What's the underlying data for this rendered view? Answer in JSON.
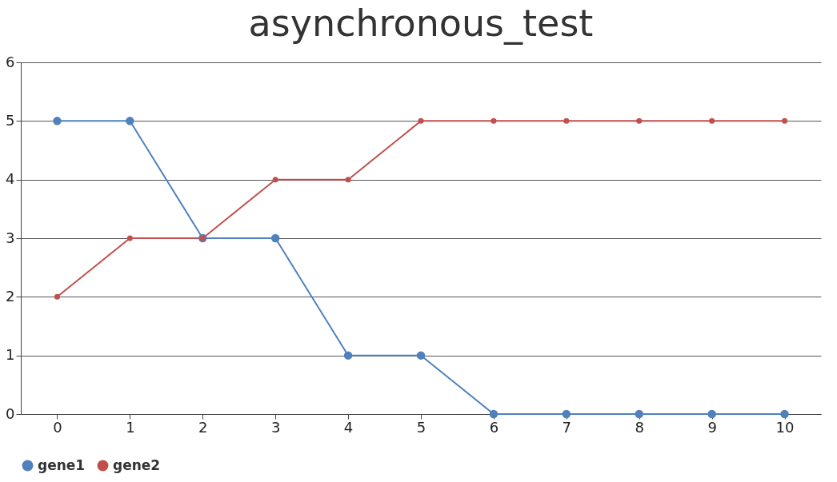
{
  "chart_data": {
    "type": "line",
    "title": "asynchronous_test",
    "categories": [
      "0",
      "1",
      "2",
      "3",
      "4",
      "5",
      "6",
      "7",
      "8",
      "9",
      "10"
    ],
    "series": [
      {
        "name": "gene1",
        "color": "#4f81bd",
        "values": [
          5,
          5,
          3,
          3,
          1,
          1,
          0,
          0,
          0,
          0,
          0
        ]
      },
      {
        "name": "gene2",
        "color": "#c0504d",
        "values": [
          2,
          3,
          3,
          4,
          4,
          5,
          5,
          5,
          5,
          5,
          5
        ]
      }
    ],
    "ylim": [
      0,
      6
    ],
    "yticks": [
      0,
      1,
      2,
      3,
      4,
      5,
      6
    ],
    "grid": "y",
    "legend": "bottom",
    "marker": "circle",
    "line_style": "solid"
  }
}
